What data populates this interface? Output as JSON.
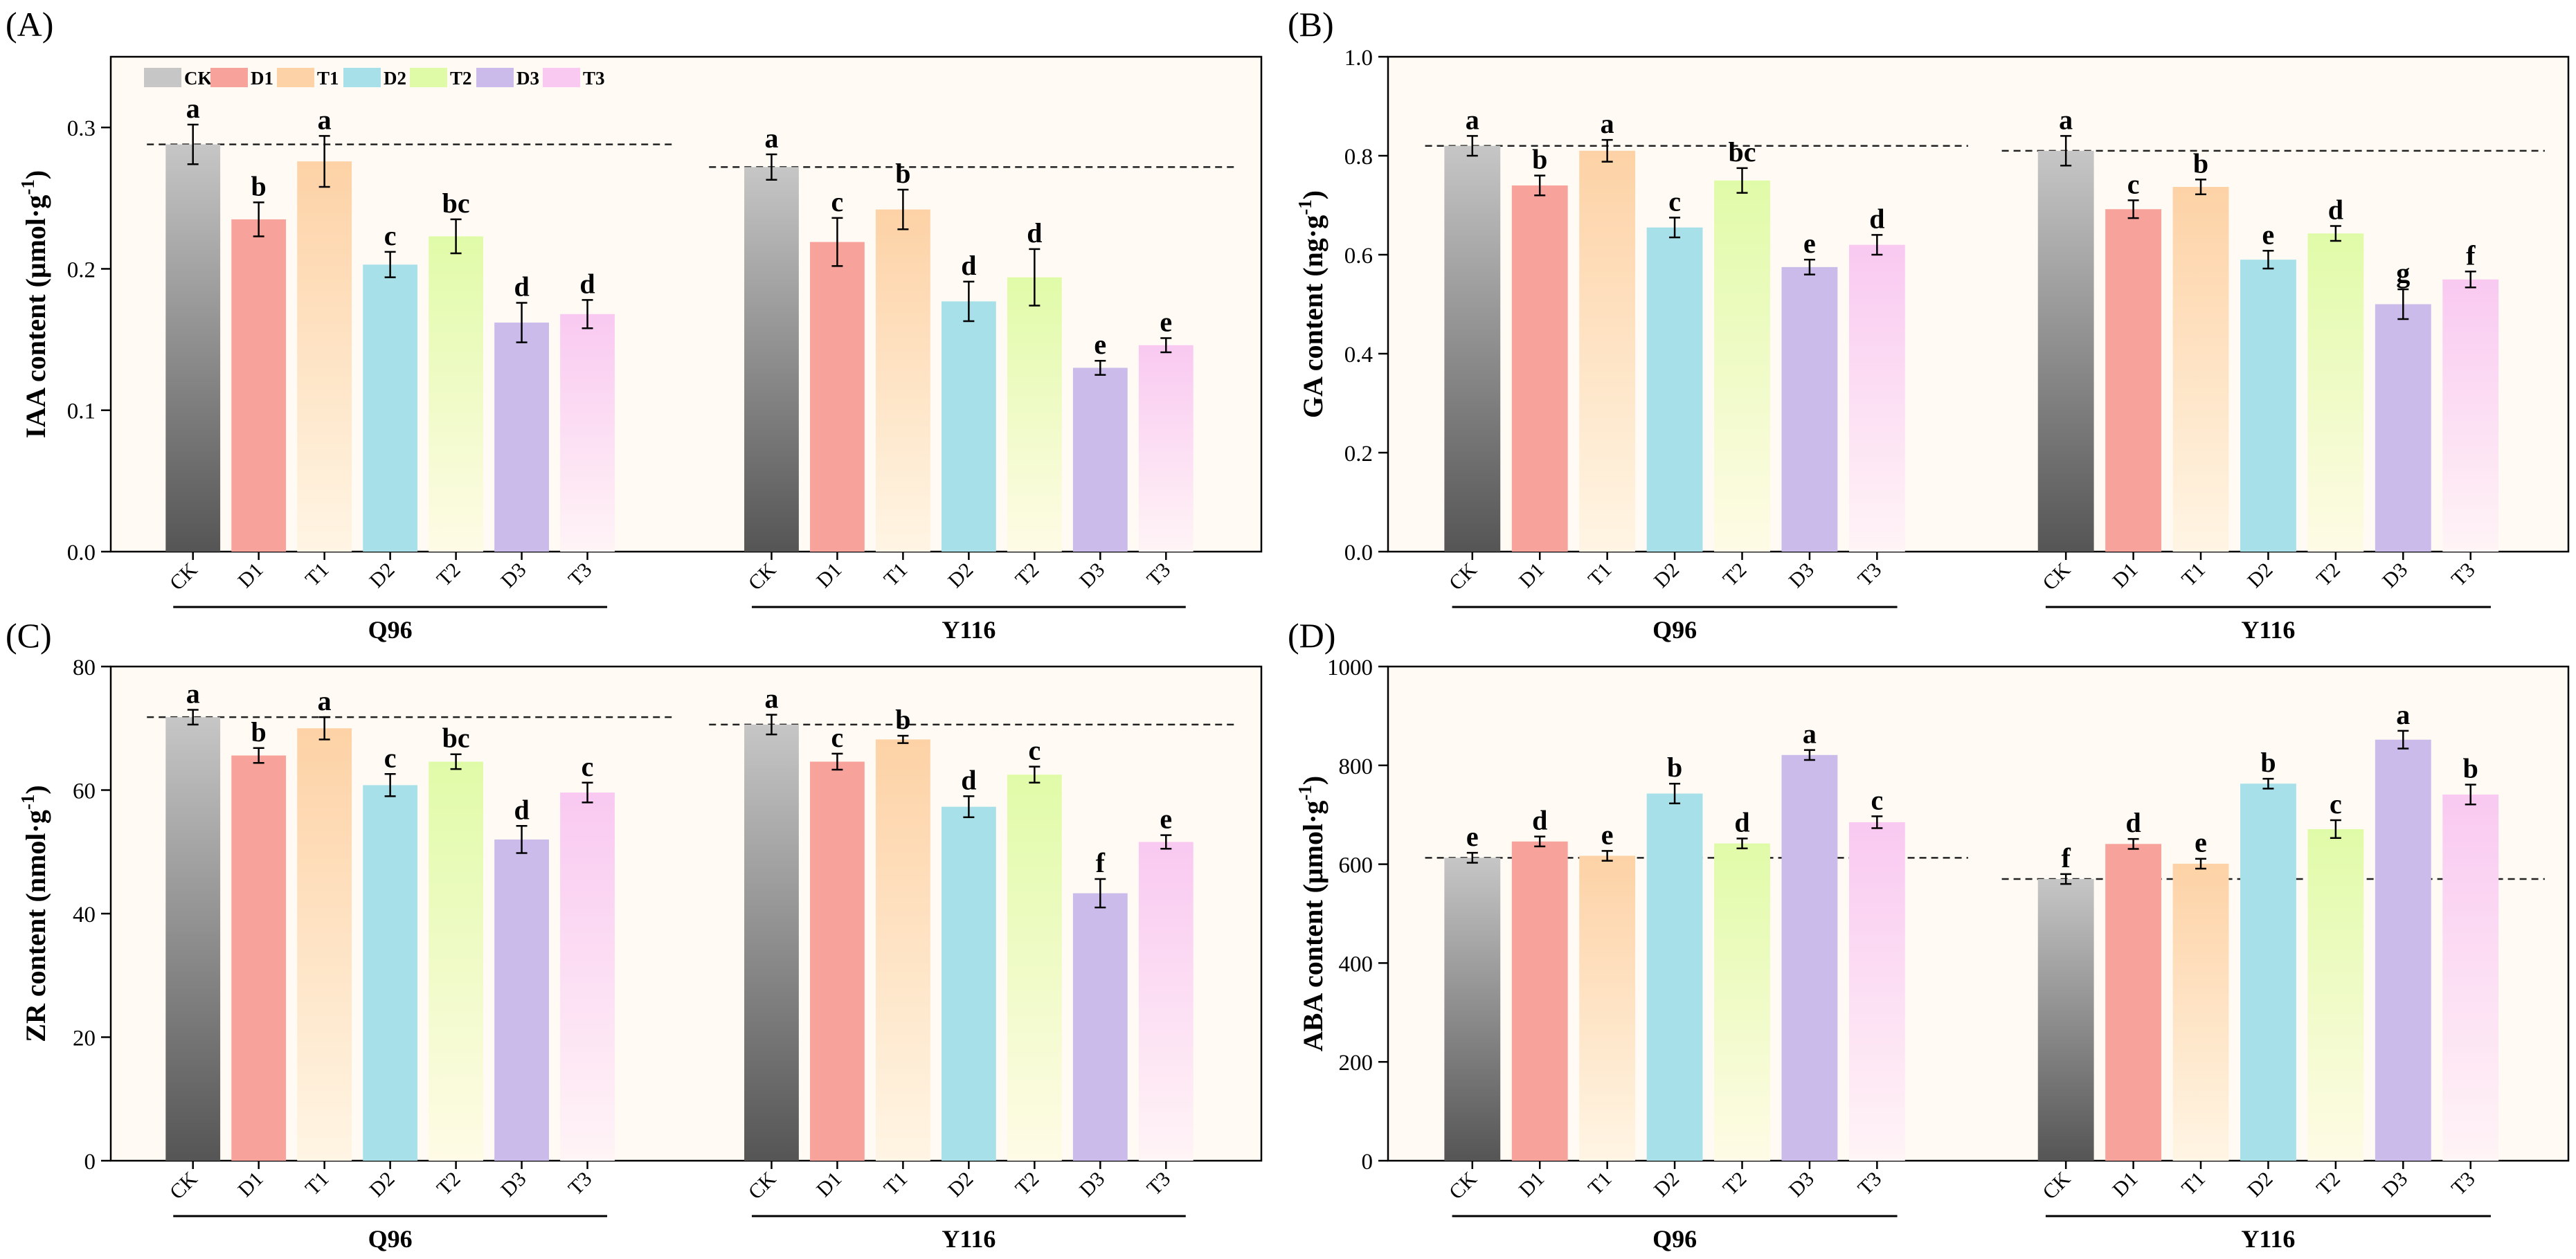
{
  "legend": {
    "items": [
      {
        "key": "CK",
        "label": "CK"
      },
      {
        "key": "D1",
        "label": "D1"
      },
      {
        "key": "T1",
        "label": "T1"
      },
      {
        "key": "D2",
        "label": "D2"
      },
      {
        "key": "T2",
        "label": "T2"
      },
      {
        "key": "D3",
        "label": "D3"
      },
      {
        "key": "T3",
        "label": "T3"
      }
    ]
  },
  "colors": {
    "CK": [
      "#555555",
      "#c6c6c6"
    ],
    "D1": [
      "#f7a39b",
      "#f7a39b"
    ],
    "T1": [
      "#fff5e4",
      "#fdd2a6"
    ],
    "D2": [
      "#a8e0ea",
      "#a8e0ea"
    ],
    "T2": [
      "#fffbe6",
      "#e0fba8"
    ],
    "D3": [
      "#cbbbea",
      "#cbbbea"
    ],
    "T3": [
      "#fff4f6",
      "#f9c9f1"
    ],
    "plot_bg": "#fffbf4"
  },
  "chart_data": [
    {
      "panel": "(A)",
      "type": "bar",
      "ylabel": "IAA content (μmol·g",
      "ylabel_sup": "-1",
      "ylabel_close": ")",
      "ylim": [
        0,
        0.35
      ],
      "yticks": [
        0.0,
        0.1,
        0.2,
        0.3
      ],
      "ytick_labels": [
        "0.0",
        "0.1",
        "0.2",
        "0.3"
      ],
      "show_legend": true,
      "groups": [
        {
          "name": "Q96",
          "categories": [
            "CK",
            "D1",
            "T1",
            "D2",
            "T2",
            "D3",
            "T3"
          ],
          "values": [
            0.288,
            0.235,
            0.276,
            0.203,
            0.223,
            0.162,
            0.168
          ],
          "errors": [
            0.014,
            0.012,
            0.018,
            0.009,
            0.012,
            0.014,
            0.01
          ],
          "letters": [
            "a",
            "b",
            "a",
            "c",
            "bc",
            "d",
            "d"
          ]
        },
        {
          "name": "Y116",
          "categories": [
            "CK",
            "D1",
            "T1",
            "D2",
            "T2",
            "D3",
            "T3"
          ],
          "values": [
            0.272,
            0.219,
            0.242,
            0.177,
            0.194,
            0.13,
            0.146
          ],
          "errors": [
            0.009,
            0.017,
            0.014,
            0.014,
            0.02,
            0.005,
            0.005
          ],
          "letters": [
            "a",
            "c",
            "b",
            "d",
            "d",
            "e",
            "e"
          ]
        }
      ]
    },
    {
      "panel": "(B)",
      "type": "bar",
      "ylabel": "GA content (ng·g",
      "ylabel_sup": "-1",
      "ylabel_close": ")",
      "ylim": [
        0,
        1.0
      ],
      "yticks": [
        0.0,
        0.2,
        0.4,
        0.6,
        0.8,
        1.0
      ],
      "ytick_labels": [
        "0.0",
        "0.2",
        "0.4",
        "0.6",
        "0.8",
        "1.0"
      ],
      "show_legend": false,
      "groups": [
        {
          "name": "Q96",
          "categories": [
            "CK",
            "D1",
            "T1",
            "D2",
            "T2",
            "D3",
            "T3"
          ],
          "values": [
            0.82,
            0.74,
            0.81,
            0.655,
            0.75,
            0.575,
            0.62
          ],
          "errors": [
            0.02,
            0.02,
            0.022,
            0.02,
            0.025,
            0.015,
            0.02
          ],
          "letters": [
            "a",
            "b",
            "a",
            "c",
            "bc",
            "e",
            "d"
          ]
        },
        {
          "name": "Y116",
          "categories": [
            "CK",
            "D1",
            "T1",
            "D2",
            "T2",
            "D3",
            "T3"
          ],
          "values": [
            0.81,
            0.692,
            0.737,
            0.59,
            0.643,
            0.5,
            0.55
          ],
          "errors": [
            0.03,
            0.018,
            0.015,
            0.018,
            0.015,
            0.03,
            0.016
          ],
          "letters": [
            "a",
            "c",
            "b",
            "e",
            "d",
            "g",
            "f"
          ]
        }
      ]
    },
    {
      "panel": "(C)",
      "type": "bar",
      "ylabel": "ZR content (nmol·g",
      "ylabel_sup": "-1",
      "ylabel_close": ")",
      "ylim": [
        0,
        80
      ],
      "yticks": [
        0,
        20,
        40,
        60,
        80
      ],
      "ytick_labels": [
        "0",
        "20",
        "40",
        "60",
        "80"
      ],
      "show_legend": false,
      "groups": [
        {
          "name": "Q96",
          "categories": [
            "CK",
            "D1",
            "T1",
            "D2",
            "T2",
            "D3",
            "T3"
          ],
          "values": [
            71.8,
            65.6,
            70.0,
            60.8,
            64.6,
            52.0,
            59.6
          ],
          "errors": [
            1.2,
            1.2,
            1.8,
            1.8,
            1.2,
            2.2,
            1.6
          ],
          "letters": [
            "a",
            "b",
            "a",
            "c",
            "bc",
            "d",
            "c"
          ]
        },
        {
          "name": "Y116",
          "categories": [
            "CK",
            "D1",
            "T1",
            "D2",
            "T2",
            "D3",
            "T3"
          ],
          "values": [
            70.6,
            64.6,
            68.2,
            57.3,
            62.5,
            43.3,
            51.6
          ],
          "errors": [
            1.6,
            1.3,
            0.6,
            1.7,
            1.3,
            2.3,
            1.1
          ],
          "letters": [
            "a",
            "c",
            "b",
            "d",
            "c",
            "f",
            "e"
          ]
        }
      ]
    },
    {
      "panel": "(D)",
      "type": "bar",
      "ylabel": "ABA content (μmol·g",
      "ylabel_sup": "-1",
      "ylabel_close": ")",
      "ylim": [
        0,
        1000
      ],
      "yticks": [
        0,
        200,
        400,
        600,
        800,
        1000
      ],
      "ytick_labels": [
        "0",
        "200",
        "400",
        "600",
        "800",
        "1000"
      ],
      "show_legend": false,
      "groups": [
        {
          "name": "Q96",
          "categories": [
            "CK",
            "D1",
            "T1",
            "D2",
            "T2",
            "D3",
            "T3"
          ],
          "values": [
            613,
            646,
            617,
            743,
            642,
            821,
            685
          ],
          "errors": [
            10,
            10,
            10,
            20,
            10,
            10,
            12
          ],
          "letters": [
            "e",
            "d",
            "e",
            "b",
            "d",
            "a",
            "c"
          ]
        },
        {
          "name": "Y116",
          "categories": [
            "CK",
            "D1",
            "T1",
            "D2",
            "T2",
            "D3",
            "T3"
          ],
          "values": [
            570,
            641,
            601,
            763,
            671,
            852,
            741
          ],
          "errors": [
            10,
            10,
            10,
            10,
            18,
            18,
            20
          ],
          "letters": [
            "f",
            "d",
            "e",
            "b",
            "c",
            "a",
            "b"
          ]
        }
      ]
    }
  ]
}
